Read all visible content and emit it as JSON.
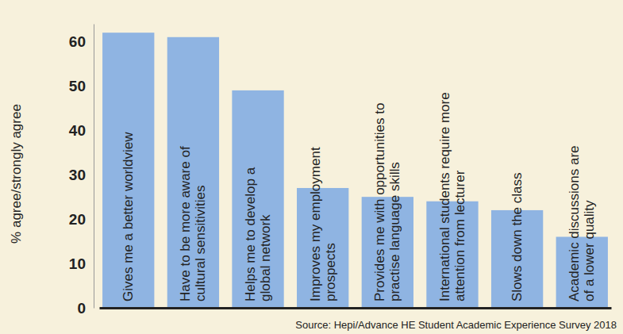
{
  "chart_data": {
    "type": "bar",
    "y_label": "% agree/strongly agree",
    "source": "Source: Hepi/Advance HE Student Academic Experience Survey 2018",
    "categories": [
      "Gives me a better worldview",
      "Have to be more aware of\ncultural sensitivities",
      "Helps me to develop a\nglobal network",
      "Improves my employment\nprospects",
      "Provides me with opportunities to\npractise language skills",
      "International students require more\nattention from lecturer",
      "Slows down the class",
      "Academic discussions are\nof a lower quality"
    ],
    "values": [
      62,
      61,
      49,
      27,
      25,
      24,
      22,
      16
    ],
    "color": "#8fb4e2",
    "ylim": [
      0,
      64
    ],
    "yticks": [
      0,
      10,
      20,
      30,
      40,
      50,
      60
    ],
    "grid": false
  }
}
